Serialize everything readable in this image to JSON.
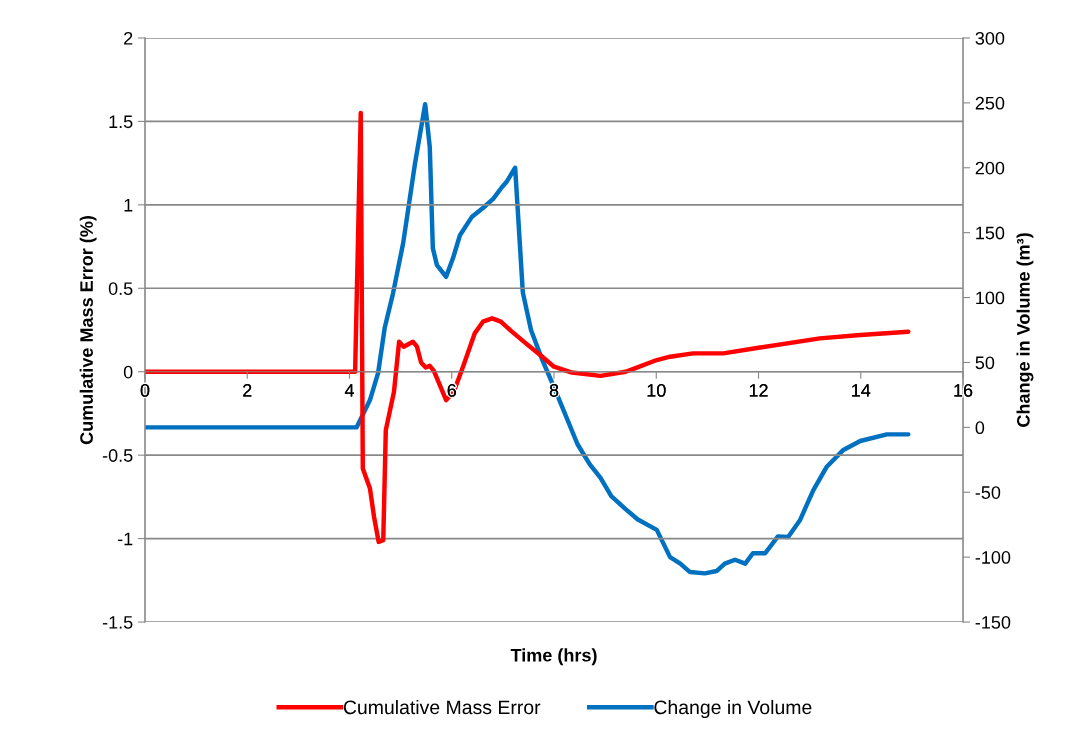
{
  "chart_data": {
    "type": "line",
    "xlabel": "Time (hrs)",
    "ylabel": "Cumulative Mass Error (%)",
    "y2label": "Change in Volume (m³)",
    "xlim": [
      0,
      16
    ],
    "xticks": [
      0,
      2,
      4,
      6,
      8,
      10,
      12,
      14,
      16
    ],
    "ylim": [
      -1.5,
      2
    ],
    "yticks": [
      -1.5,
      -1,
      -0.5,
      0,
      0.5,
      1,
      1.5,
      2
    ],
    "y2lim": [
      -150,
      300
    ],
    "y2ticks": [
      -150,
      -100,
      -50,
      0,
      50,
      100,
      150,
      200,
      250,
      300
    ],
    "grid": "y",
    "legend": "bottom",
    "marker": "none",
    "line_style": "solid",
    "series": [
      {
        "name": "Cumulative Mass Error",
        "color": "#ff0000",
        "x": [
          0,
          4.11,
          4.22,
          4.26,
          4.4,
          4.48,
          4.57,
          4.66,
          4.71,
          4.87,
          4.97,
          5.06,
          5.24,
          5.32,
          5.4,
          5.49,
          5.57,
          5.65,
          5.89,
          6.04,
          6.22,
          6.45,
          6.61,
          6.79,
          6.96,
          7.16,
          7.45,
          7.73,
          8.0,
          8.35,
          8.91,
          9.4,
          9.62,
          10.01,
          10.27,
          10.72,
          11.31,
          12.03,
          13.2,
          13.99,
          14.93
        ],
        "values": [
          0,
          0,
          1.55,
          -0.58,
          -0.7,
          -0.87,
          -1.02,
          -1.01,
          -0.35,
          -0.12,
          0.18,
          0.15,
          0.18,
          0.15,
          0.055,
          0.025,
          0.035,
          0.005,
          -0.17,
          -0.12,
          0.03,
          0.23,
          0.3,
          0.32,
          0.3,
          0.245,
          0.17,
          0.1,
          0.03,
          -0.005,
          -0.025,
          0,
          0.025,
          0.07,
          0.09,
          0.11,
          0.11,
          0.145,
          0.2,
          0.22,
          0.24
        ]
      },
      {
        "name": "Change in Volume",
        "color": "#0070c0",
        "axis": "y2",
        "x": [
          0,
          4.14,
          4.4,
          4.56,
          4.69,
          4.85,
          5.05,
          5.28,
          5.48,
          5.57,
          5.63,
          5.71,
          5.89,
          6.03,
          6.16,
          6.39,
          6.61,
          6.81,
          6.98,
          7.07,
          7.24,
          7.39,
          7.55,
          7.76,
          8.0,
          8.46,
          8.7,
          8.91,
          9.12,
          9.4,
          9.64,
          10.01,
          10.27,
          10.47,
          10.66,
          10.95,
          11.18,
          11.34,
          11.54,
          11.74,
          11.89,
          12.13,
          12.38,
          12.58,
          12.81,
          13.07,
          13.33,
          13.65,
          13.99,
          14.51,
          14.93
        ],
        "values": [
          0,
          0,
          21,
          42,
          77,
          103,
          142,
          203,
          249,
          216,
          138,
          125,
          116,
          131,
          148,
          162,
          169,
          176,
          185,
          189,
          200,
          104,
          75,
          53,
          31,
          -13,
          -28.5,
          -39,
          -53,
          -63,
          -71,
          -79,
          -100,
          -105,
          -111.5,
          -112.5,
          -110.7,
          -105,
          -102,
          -105,
          -97,
          -97,
          -84,
          -84.5,
          -71.6,
          -48.5,
          -30.6,
          -17.7,
          -10.5,
          -5.4,
          -5.4
        ]
      }
    ]
  }
}
